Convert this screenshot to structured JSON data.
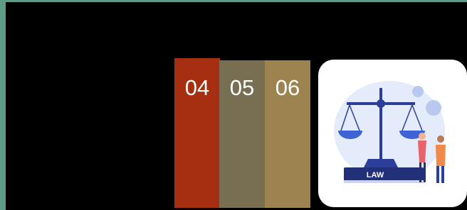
{
  "tiles": [
    {
      "label": "04"
    },
    {
      "label": "05"
    },
    {
      "label": "06"
    }
  ],
  "card": {
    "book_label": "LAW"
  }
}
